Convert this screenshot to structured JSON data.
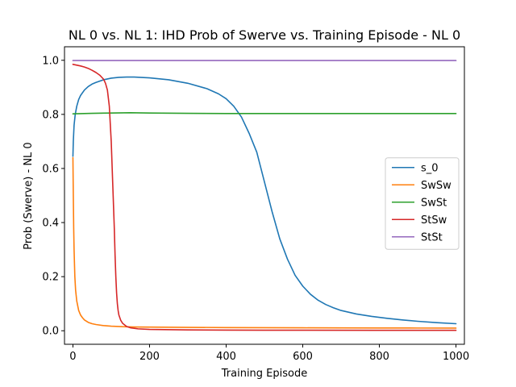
{
  "chart_data": {
    "type": "line",
    "title": "NL 0 vs. NL 1: IHD Prob of Swerve vs. Training Episode - NL 0",
    "xlabel": "Training Episode",
    "ylabel": "Prob (Swerve) - NL 0",
    "xlim": [
      -22,
      1022
    ],
    "ylim": [
      -0.05,
      1.05
    ],
    "xticks": [
      0,
      200,
      400,
      600,
      800,
      1000
    ],
    "yticks": [
      0.0,
      0.2,
      0.4,
      0.6,
      0.8,
      1.0
    ],
    "xtick_labels": [
      "0",
      "200",
      "400",
      "600",
      "800",
      "1000"
    ],
    "ytick_labels": [
      "0.0",
      "0.2",
      "0.4",
      "0.6",
      "0.8",
      "1.0"
    ],
    "grid": false,
    "legend_position": "center-right",
    "series": [
      {
        "name": "s_0",
        "color": "#1f77b4",
        "x": [
          0,
          1,
          3,
          6,
          10,
          15,
          20,
          30,
          40,
          50,
          60,
          80,
          100,
          120,
          140,
          160,
          200,
          250,
          300,
          350,
          380,
          400,
          420,
          440,
          460,
          480,
          500,
          520,
          540,
          560,
          580,
          600,
          620,
          640,
          660,
          680,
          700,
          740,
          780,
          820,
          860,
          900,
          950,
          1000
        ],
        "y": [
          0.645,
          0.7,
          0.76,
          0.8,
          0.83,
          0.855,
          0.87,
          0.89,
          0.903,
          0.912,
          0.918,
          0.928,
          0.934,
          0.937,
          0.938,
          0.938,
          0.935,
          0.928,
          0.915,
          0.895,
          0.876,
          0.858,
          0.83,
          0.79,
          0.73,
          0.66,
          0.55,
          0.44,
          0.34,
          0.265,
          0.205,
          0.165,
          0.135,
          0.113,
          0.097,
          0.085,
          0.075,
          0.062,
          0.053,
          0.046,
          0.04,
          0.035,
          0.03,
          0.026
        ]
      },
      {
        "name": "SwSw",
        "color": "#ff7f0e",
        "x": [
          0,
          1,
          2,
          3,
          4,
          5,
          7,
          10,
          15,
          20,
          25,
          30,
          40,
          50,
          60,
          80,
          100,
          130,
          160,
          200,
          300,
          400,
          500,
          600,
          700,
          800,
          900,
          1000
        ],
        "y": [
          0.64,
          0.5,
          0.38,
          0.3,
          0.25,
          0.2,
          0.15,
          0.11,
          0.075,
          0.058,
          0.048,
          0.04,
          0.031,
          0.026,
          0.023,
          0.019,
          0.017,
          0.015,
          0.014,
          0.0135,
          0.0125,
          0.0118,
          0.0112,
          0.0108,
          0.0105,
          0.0102,
          0.01,
          0.0098
        ]
      },
      {
        "name": "SwSt",
        "color": "#2ca02c",
        "x": [
          0,
          50,
          100,
          150,
          200,
          300,
          400,
          500,
          600,
          700,
          800,
          900,
          1000
        ],
        "y": [
          0.802,
          0.804,
          0.805,
          0.806,
          0.805,
          0.804,
          0.803,
          0.803,
          0.803,
          0.803,
          0.803,
          0.803,
          0.803
        ]
      },
      {
        "name": "StSw",
        "color": "#d62728",
        "x": [
          0,
          10,
          20,
          30,
          40,
          50,
          60,
          70,
          80,
          85,
          90,
          95,
          100,
          105,
          108,
          110,
          112,
          114,
          116,
          118,
          120,
          125,
          130,
          140,
          150,
          170,
          200,
          300,
          400,
          500,
          600,
          800,
          1000
        ],
        "y": [
          0.985,
          0.982,
          0.979,
          0.975,
          0.97,
          0.963,
          0.955,
          0.945,
          0.93,
          0.915,
          0.89,
          0.83,
          0.7,
          0.5,
          0.38,
          0.28,
          0.2,
          0.14,
          0.1,
          0.075,
          0.058,
          0.038,
          0.027,
          0.016,
          0.011,
          0.007,
          0.005,
          0.003,
          0.0025,
          0.002,
          0.002,
          0.0015,
          0.0015
        ]
      },
      {
        "name": "StSt",
        "color": "#9467bd",
        "x": [
          0,
          1000
        ],
        "y": [
          0.999,
          0.999
        ]
      }
    ]
  }
}
